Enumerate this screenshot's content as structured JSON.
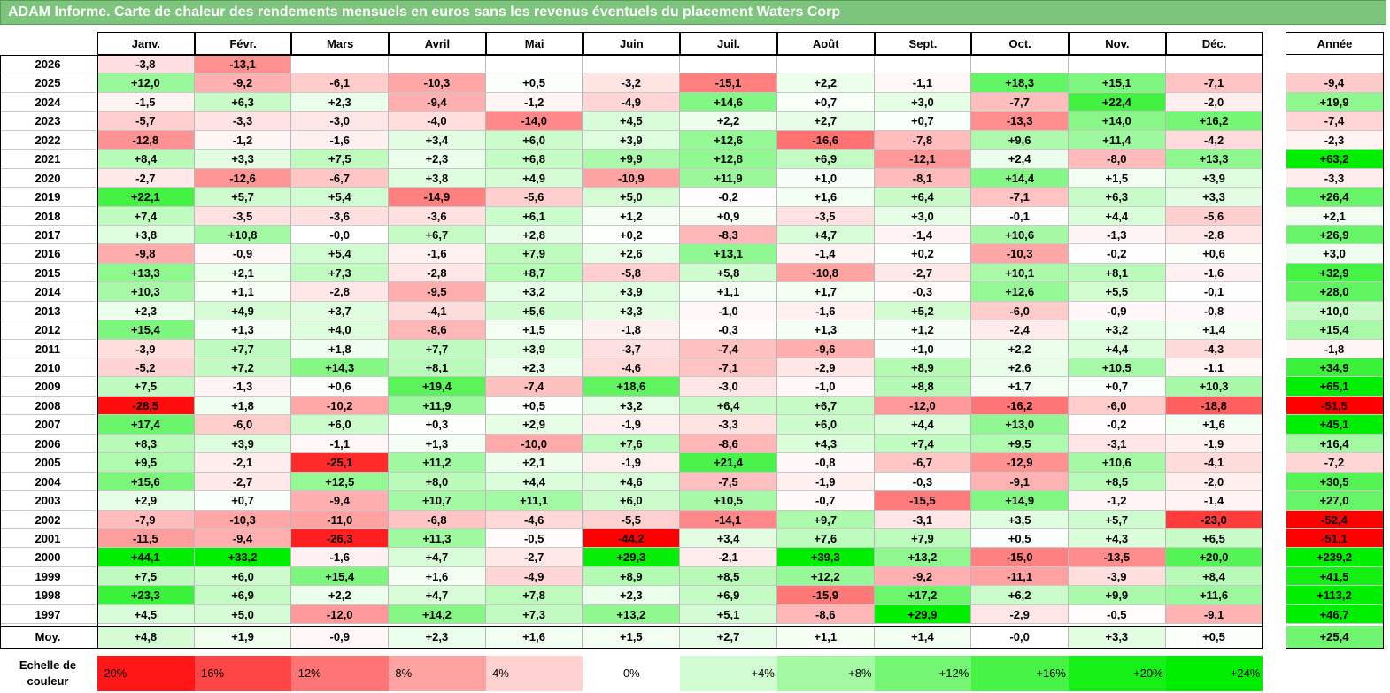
{
  "title": "ADAM Informe. Carte de chaleur des rendements mensuels en euros sans les revenus éventuels du placement Waters Corp",
  "chart_data": {
    "type": "heatmap",
    "months": [
      "Janv.",
      "Févr.",
      "Mars",
      "Avril",
      "Mai",
      "Juin",
      "Juil.",
      "Août",
      "Sept.",
      "Oct.",
      "Nov.",
      "Déc."
    ],
    "year_header": "Année",
    "rows": [
      {
        "year": "2026",
        "values": [
          "-3,8",
          "-13,1",
          "",
          "",
          "",
          "",
          "",
          "",
          "",
          "",
          "",
          ""
        ],
        "annual": ""
      },
      {
        "year": "2025",
        "values": [
          "+12,0",
          "-9,2",
          "-6,1",
          "-10,3",
          "+0,5",
          "-3,2",
          "-15,1",
          "+2,2",
          "-1,1",
          "+18,3",
          "+15,1",
          "-7,1"
        ],
        "annual": "-9,4"
      },
      {
        "year": "2024",
        "values": [
          "-1,5",
          "+6,3",
          "+2,3",
          "-9,4",
          "-1,2",
          "-4,9",
          "+14,6",
          "+0,7",
          "+3,0",
          "-7,7",
          "+22,4",
          "-2,0"
        ],
        "annual": "+19,9"
      },
      {
        "year": "2023",
        "values": [
          "-5,7",
          "-3,3",
          "-3,0",
          "-4,0",
          "-14,0",
          "+4,5",
          "+2,2",
          "+2,7",
          "+0,7",
          "-13,3",
          "+14,0",
          "+16,2"
        ],
        "annual": "-7,4"
      },
      {
        "year": "2022",
        "values": [
          "-12,8",
          "-1,2",
          "-1,6",
          "+3,4",
          "+6,0",
          "+3,9",
          "+12,6",
          "-16,6",
          "-7,8",
          "+9,6",
          "+11,4",
          "-4,2"
        ],
        "annual": "-2,3"
      },
      {
        "year": "2021",
        "values": [
          "+8,4",
          "+3,3",
          "+7,5",
          "+2,3",
          "+6,8",
          "+9,9",
          "+12,8",
          "+6,9",
          "-12,1",
          "+2,4",
          "-8,0",
          "+13,3"
        ],
        "annual": "+63,2"
      },
      {
        "year": "2020",
        "values": [
          "-2,7",
          "-12,6",
          "-6,7",
          "+3,8",
          "+4,9",
          "-10,9",
          "+11,9",
          "+1,0",
          "-8,1",
          "+14,4",
          "+1,5",
          "+3,9"
        ],
        "annual": "-3,3"
      },
      {
        "year": "2019",
        "values": [
          "+22,1",
          "+5,7",
          "+5,4",
          "-14,9",
          "-5,6",
          "+5,0",
          "-0,2",
          "+1,6",
          "+6,4",
          "-7,1",
          "+6,3",
          "+3,3"
        ],
        "annual": "+26,4"
      },
      {
        "year": "2018",
        "values": [
          "+7,4",
          "-3,5",
          "-3,6",
          "-3,6",
          "+6,1",
          "+1,2",
          "+0,9",
          "-3,5",
          "+3,0",
          "-0,1",
          "+4,4",
          "-5,6"
        ],
        "annual": "+2,1"
      },
      {
        "year": "2017",
        "values": [
          "+3,8",
          "+10,8",
          "-0,0",
          "+6,7",
          "+2,8",
          "+0,2",
          "-8,3",
          "+4,7",
          "-1,4",
          "+10,6",
          "-1,3",
          "-2,8"
        ],
        "annual": "+26,9"
      },
      {
        "year": "2016",
        "values": [
          "-9,8",
          "-0,9",
          "+5,4",
          "-1,6",
          "+7,9",
          "+2,6",
          "+13,1",
          "-1,4",
          "+0,2",
          "-10,3",
          "-0,2",
          "+0,6"
        ],
        "annual": "+3,0"
      },
      {
        "year": "2015",
        "values": [
          "+13,3",
          "+2,1",
          "+7,3",
          "-2,8",
          "+8,7",
          "-5,8",
          "+5,8",
          "-10,8",
          "-2,7",
          "+10,1",
          "+8,1",
          "-1,6"
        ],
        "annual": "+32,9"
      },
      {
        "year": "2014",
        "values": [
          "+10,3",
          "+1,1",
          "-2,8",
          "-9,5",
          "+3,2",
          "+3,9",
          "+1,1",
          "+1,7",
          "-0,3",
          "+12,6",
          "+5,5",
          "-0,1"
        ],
        "annual": "+28,0"
      },
      {
        "year": "2013",
        "values": [
          "+2,3",
          "+4,9",
          "+3,7",
          "-4,1",
          "+5,6",
          "+3,3",
          "-1,0",
          "-1,6",
          "+5,2",
          "-6,0",
          "-0,9",
          "-0,8"
        ],
        "annual": "+10,0"
      },
      {
        "year": "2012",
        "values": [
          "+15,4",
          "+1,3",
          "+4,0",
          "-8,6",
          "+1,5",
          "-1,8",
          "-0,3",
          "+1,3",
          "+1,2",
          "-2,4",
          "+3,2",
          "+1,4"
        ],
        "annual": "+15,4"
      },
      {
        "year": "2011",
        "values": [
          "-3,9",
          "+7,7",
          "+1,8",
          "+7,7",
          "+3,9",
          "-3,7",
          "-7,4",
          "-9,6",
          "+1,0",
          "+2,2",
          "+4,4",
          "-4,3"
        ],
        "annual": "-1,8"
      },
      {
        "year": "2010",
        "values": [
          "-5,2",
          "+7,2",
          "+14,3",
          "+8,1",
          "+2,3",
          "-4,6",
          "-7,1",
          "-2,9",
          "+8,9",
          "+2,6",
          "+10,5",
          "-1,1"
        ],
        "annual": "+34,9"
      },
      {
        "year": "2009",
        "values": [
          "+7,5",
          "-1,3",
          "+0,6",
          "+19,4",
          "-7,4",
          "+18,6",
          "-3,0",
          "-1,0",
          "+8,8",
          "+1,7",
          "+0,7",
          "+10,3"
        ],
        "annual": "+65,1"
      },
      {
        "year": "2008",
        "values": [
          "-28,5",
          "+1,8",
          "-10,2",
          "+11,9",
          "+0,5",
          "+3,2",
          "+6,4",
          "+6,7",
          "-12,0",
          "-16,2",
          "-6,0",
          "-18,8"
        ],
        "annual": "-51,5"
      },
      {
        "year": "2007",
        "values": [
          "+17,4",
          "-6,0",
          "+6,0",
          "+0,3",
          "+2,9",
          "-1,9",
          "-3,3",
          "+6,0",
          "+4,4",
          "+13,0",
          "-0,2",
          "+1,6"
        ],
        "annual": "+45,1"
      },
      {
        "year": "2006",
        "values": [
          "+8,3",
          "+3,9",
          "-1,1",
          "+1,3",
          "-10,0",
          "+7,6",
          "-8,6",
          "+4,3",
          "+7,4",
          "+9,5",
          "-3,1",
          "-1,9"
        ],
        "annual": "+16,4"
      },
      {
        "year": "2005",
        "values": [
          "+9,5",
          "-2,1",
          "-25,1",
          "+11,2",
          "+2,1",
          "-1,9",
          "+21,4",
          "-0,8",
          "-6,7",
          "-12,9",
          "+10,6",
          "-4,1"
        ],
        "annual": "-7,2"
      },
      {
        "year": "2004",
        "values": [
          "+15,6",
          "-2,7",
          "+12,5",
          "+8,0",
          "+4,4",
          "+4,6",
          "-7,5",
          "-1,9",
          "-0,3",
          "-9,1",
          "+8,5",
          "-2,0"
        ],
        "annual": "+30,5"
      },
      {
        "year": "2003",
        "values": [
          "+2,9",
          "+0,7",
          "-9,4",
          "+10,7",
          "+11,1",
          "+6,0",
          "+10,5",
          "-0,7",
          "-15,5",
          "+14,9",
          "-1,2",
          "-1,4"
        ],
        "annual": "+27,0"
      },
      {
        "year": "2002",
        "values": [
          "-7,9",
          "-10,3",
          "-11,0",
          "-6,8",
          "-4,6",
          "-5,5",
          "-14,1",
          "+9,7",
          "-3,1",
          "+3,5",
          "+5,7",
          "-23,0"
        ],
        "annual": "-52,4"
      },
      {
        "year": "2001",
        "values": [
          "-11,5",
          "-9,4",
          "-26,3",
          "+11,3",
          "-0,5",
          "-44,2",
          "+3,4",
          "+7,6",
          "+7,9",
          "+0,5",
          "+4,3",
          "+6,5"
        ],
        "annual": "-51,1"
      },
      {
        "year": "2000",
        "values": [
          "+44,1",
          "+33,2",
          "-1,6",
          "+4,7",
          "-2,7",
          "+29,3",
          "-2,1",
          "+39,3",
          "+13,2",
          "-15,0",
          "-13,5",
          "+20,0"
        ],
        "annual": "+239,2"
      },
      {
        "year": "1999",
        "values": [
          "+7,5",
          "+6,0",
          "+15,4",
          "+1,6",
          "-4,9",
          "+8,9",
          "+8,5",
          "+12,2",
          "-9,2",
          "-11,1",
          "-3,9",
          "+8,4"
        ],
        "annual": "+41,5"
      },
      {
        "year": "1998",
        "values": [
          "+23,3",
          "+6,9",
          "+2,2",
          "+4,7",
          "+7,8",
          "+2,3",
          "+6,9",
          "-15,9",
          "+17,2",
          "+6,2",
          "+9,9",
          "+11,6"
        ],
        "annual": "+113,2"
      },
      {
        "year": "1997",
        "values": [
          "+4,5",
          "+5,0",
          "-12,0",
          "+14,2",
          "+7,3",
          "+13,2",
          "+5,1",
          "-8,6",
          "+29,9",
          "-2,9",
          "-0,5",
          "-9,1"
        ],
        "annual": "+46,7"
      }
    ],
    "average": {
      "label": "Moy.",
      "values": [
        "+4,8",
        "+1,9",
        "-0,9",
        "+2,3",
        "+1,6",
        "+1,5",
        "+2,7",
        "+1,1",
        "+1,4",
        "-0,0",
        "+3,3",
        "+0,5"
      ],
      "annual": "+25,4"
    },
    "legend": {
      "label": "Echelle de couleur",
      "steps": [
        "-20%",
        "-16%",
        "-12%",
        "-8%",
        "-4%",
        "0%",
        "+4%",
        "+8%",
        "+12%",
        "+16%",
        "+20%",
        "+24%"
      ],
      "step_values": [
        -20,
        -16,
        -12,
        -8,
        -4,
        0,
        4,
        8,
        12,
        16,
        20,
        24
      ]
    },
    "colors": {
      "negative_max": "#ff0000",
      "neutral": "#ffffff",
      "positive_max": "#00ee00",
      "title_bg": "#7dc47d"
    }
  }
}
